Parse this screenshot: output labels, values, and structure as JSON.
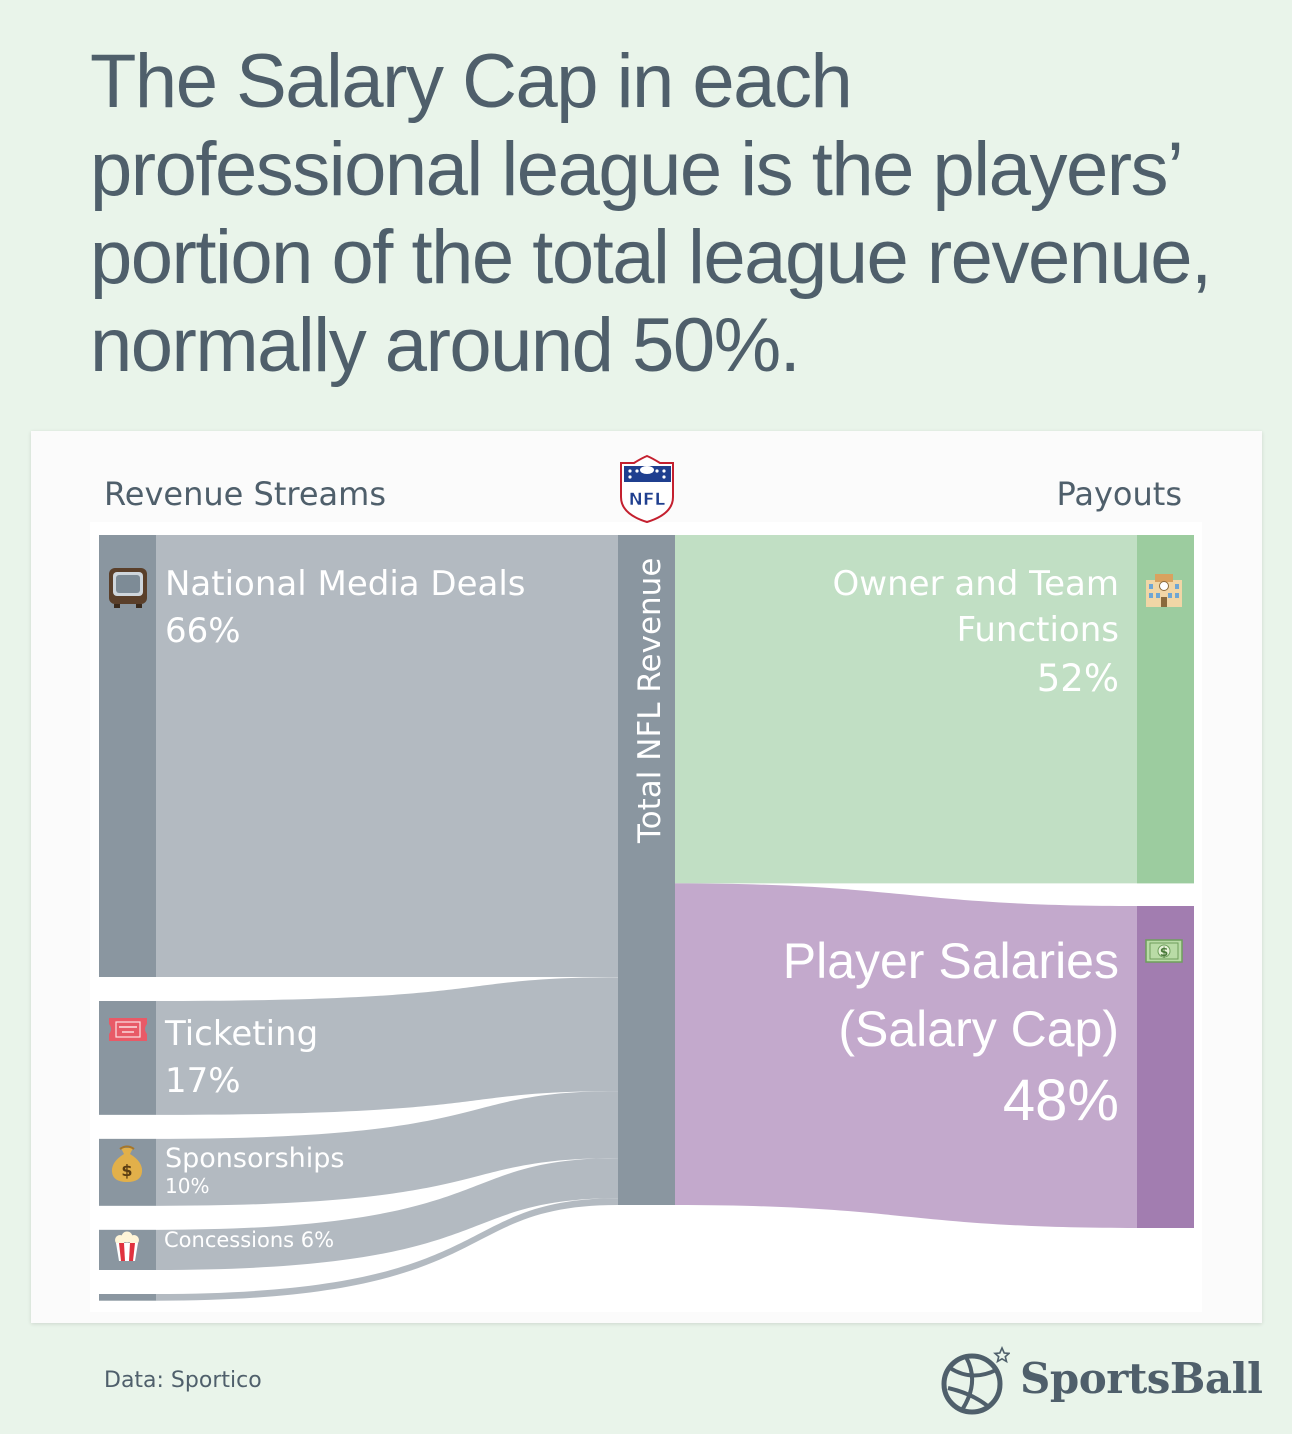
{
  "headline": "The Salary Cap in each professional league is the players’ portion of the total league revenue, normally around 50%.",
  "left_column_label": "Revenue Streams",
  "right_column_label": "Payouts",
  "center_node_label": "Total NFL Revenue",
  "logo_text": "NFL",
  "sources": [
    {
      "name": "National Media Deals",
      "pct": "66%",
      "share": 66,
      "icon": "television-icon"
    },
    {
      "name": "Ticketing",
      "pct": "17%",
      "share": 17,
      "icon": "ticket-icon"
    },
    {
      "name": "Sponsorships",
      "pct": "10%",
      "share": 10,
      "icon": "money-bag-icon"
    },
    {
      "name": "Concessions 6%",
      "share": 6,
      "icon": "popcorn-icon"
    },
    {
      "share": 1
    }
  ],
  "payouts": [
    {
      "name_line1": "Owner and Team",
      "name_line2": "Functions",
      "pct": "52%",
      "share": 52,
      "icon": "building-icon"
    },
    {
      "name_line1": "Player Salaries",
      "name_line2": "(Salary Cap)",
      "pct": "48%",
      "share": 48,
      "icon": "money-icon"
    }
  ],
  "colors": {
    "background": "#e9f4ea",
    "text": "#4f5f6b",
    "source_bar": "#8a96a0",
    "source_flow": "#b3bac1",
    "center_bar": "#8a96a0",
    "owner_flow": "#c1dfc4",
    "owner_bar": "#9ccc9f",
    "player_flow": "#c3a9cc",
    "player_bar": "#a27db0"
  },
  "footer": {
    "source_note": "Data: Sportico",
    "brand": "SportsBall"
  }
}
